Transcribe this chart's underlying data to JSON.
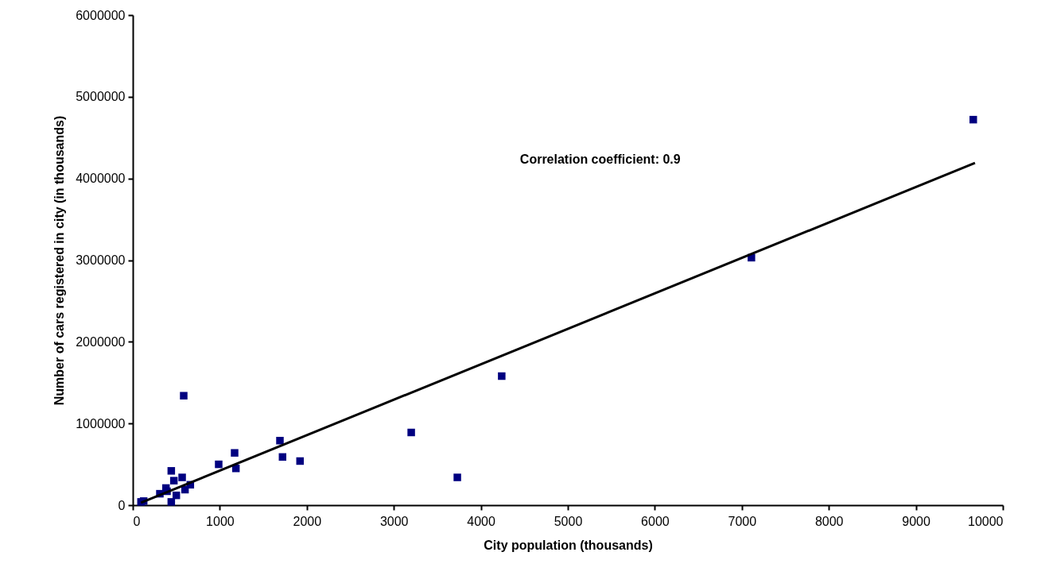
{
  "chart_data": {
    "type": "scatter",
    "xlabel": "City population (thousands)",
    "ylabel": "Number of cars registered in city (in thousands)",
    "annotations": [
      "Correlation coefficient: 0.9"
    ],
    "xlim": [
      0,
      10000
    ],
    "xticks": [
      0,
      1000,
      2000,
      3000,
      4000,
      5000,
      6000,
      7000,
      8000,
      9000,
      10000
    ],
    "ylim": [
      0,
      6000000
    ],
    "yticks": [
      0,
      1000000,
      2000000,
      3000000,
      4000000,
      5000000,
      6000000
    ],
    "grid": false,
    "marker": "square",
    "series": [
      {
        "color": "#000080",
        "x": [
          94,
          125,
          311,
          381,
          393,
          442,
          472,
          567,
          442,
          500,
          600,
          661,
          585,
          987,
          1170,
          1185,
          1691,
          1721,
          1922,
          3200,
          3730,
          4240,
          7110,
          9660
        ],
        "values": [
          40000,
          50000,
          140000,
          210000,
          170000,
          420000,
          300000,
          340000,
          40000,
          120000,
          190000,
          250000,
          1340000,
          500000,
          640000,
          450000,
          790000,
          590000,
          540000,
          890000,
          340000,
          1580000,
          3030000,
          4720000
        ]
      },
      {
        "type": "line",
        "marker": "none",
        "color": "#000000",
        "line_style": "solid",
        "x": [
          94,
          9680
        ],
        "values": [
          30000,
          4190000
        ]
      }
    ]
  }
}
